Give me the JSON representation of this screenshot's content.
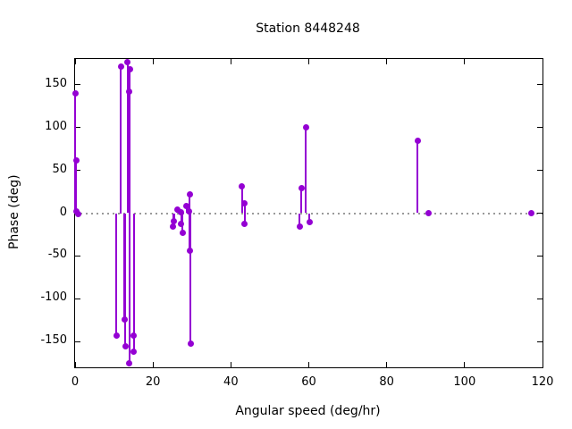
{
  "chart_data": {
    "type": "scatter",
    "subtype": "impulses-with-points",
    "title": "Station 8448248",
    "xlabel": "Angular speed (deg/hr)",
    "ylabel": "Phase (deg)",
    "xlim": [
      0,
      120
    ],
    "ylim": [
      -180,
      180
    ],
    "x_ticks": [
      0,
      20,
      40,
      60,
      80,
      100,
      120
    ],
    "y_ticks": [
      -150,
      -100,
      -50,
      0,
      50,
      100,
      150
    ],
    "grid": "zero-line-only",
    "legend": "none",
    "marker_color": "#9400d3",
    "zero_line_color": "#9a9a9a",
    "axis_color": "#000000",
    "background_color": "#ffffff",
    "points": [
      [
        0.05,
        140
      ],
      [
        0.3,
        62
      ],
      [
        0.3,
        2
      ],
      [
        0.9,
        -1
      ],
      [
        10.6,
        -143
      ],
      [
        11.8,
        171
      ],
      [
        12.7,
        -124
      ],
      [
        12.9,
        -155
      ],
      [
        13.5,
        176
      ],
      [
        13.8,
        142
      ],
      [
        13.9,
        -175
      ],
      [
        14.0,
        168
      ],
      [
        15.1,
        -143
      ],
      [
        15.1,
        -162
      ],
      [
        25.2,
        -16
      ],
      [
        25.4,
        -9
      ],
      [
        26.2,
        4
      ],
      [
        27.3,
        1
      ],
      [
        27.3,
        -12
      ],
      [
        27.6,
        -23
      ],
      [
        28.6,
        8
      ],
      [
        29.2,
        2
      ],
      [
        29.4,
        22
      ],
      [
        29.4,
        -44
      ],
      [
        29.6,
        -152
      ],
      [
        42.9,
        31
      ],
      [
        43.5,
        12
      ],
      [
        43.5,
        -13
      ],
      [
        57.7,
        -16
      ],
      [
        58.1,
        29
      ],
      [
        59.2,
        100
      ],
      [
        60.2,
        -10
      ],
      [
        87.9,
        85
      ],
      [
        90.8,
        0
      ],
      [
        117.2,
        0
      ]
    ]
  }
}
